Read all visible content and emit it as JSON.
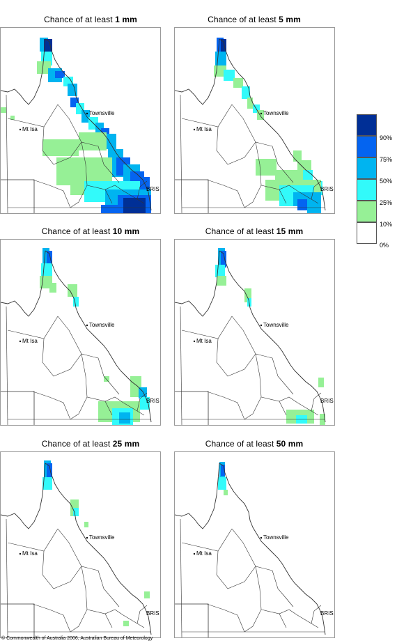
{
  "panels": [
    {
      "prefix": "Chance of at least ",
      "amount": "1 mm",
      "level": 6
    },
    {
      "prefix": "Chance of at least ",
      "amount": "5 mm",
      "level": 4
    },
    {
      "prefix": "Chance of at least ",
      "amount": "10 mm",
      "level": 3
    },
    {
      "prefix": "Chance of at least ",
      "amount": "15 mm",
      "level": 2
    },
    {
      "prefix": "Chance of at least ",
      "amount": "25 mm",
      "level": 1
    },
    {
      "prefix": "Chance of at least ",
      "amount": "50 mm",
      "level": 0
    }
  ],
  "places": {
    "townsville": "Townsville",
    "mt_isa": "Mt Isa",
    "brisbane": "BRIS"
  },
  "legend": {
    "labels": [
      "90%",
      "75%",
      "50%",
      "25%",
      "10%",
      "0%"
    ],
    "colors": [
      "#002f96",
      "#0464f0",
      "#00b4f0",
      "#32fafa",
      "#96f096",
      "#ffffff"
    ]
  },
  "footer": {
    "copyright": "© Commonwealth of Australia 2006, Australian Bureau of Meteorology"
  },
  "colors": {
    "green": "#96f096",
    "cyan": "#32fafa",
    "lightblue": "#00b4f0",
    "blue": "#0464f0",
    "darkblue": "#002f96",
    "border": "#333333"
  }
}
